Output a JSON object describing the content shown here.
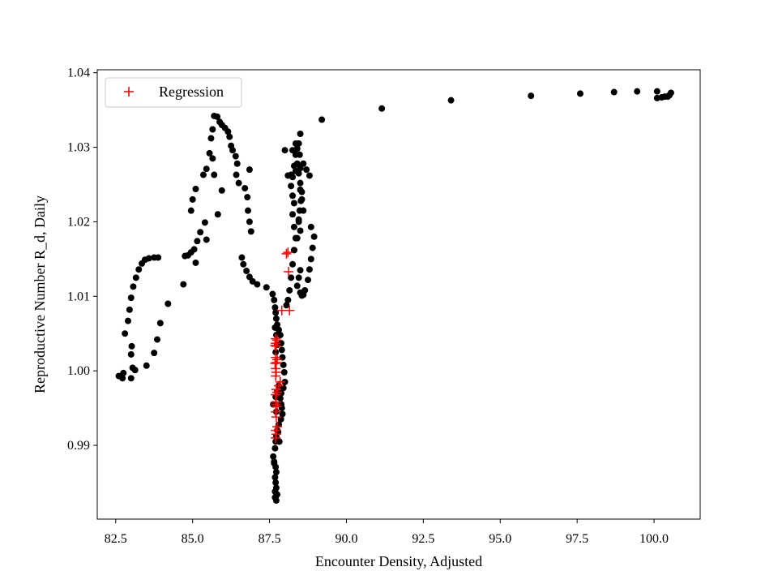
{
  "chart_data": {
    "type": "scatter",
    "xlabel": "Encounter Density, Adjusted",
    "ylabel": "Reproductive Number R_d, Daily",
    "xlim": [
      81.9,
      101.5
    ],
    "ylim": [
      0.9801,
      1.0404
    ],
    "x_ticks": [
      82.5,
      85.0,
      87.5,
      90.0,
      92.5,
      95.0,
      97.5,
      100.0
    ],
    "x_tick_labels": [
      "82.5",
      "85.0",
      "87.5",
      "90.0",
      "92.5",
      "95.0",
      "97.5",
      "100.0"
    ],
    "y_ticks": [
      0.99,
      1.0,
      1.01,
      1.02,
      1.03,
      1.04
    ],
    "y_tick_labels": [
      "0.99",
      "1.00",
      "1.01",
      "1.02",
      "1.03",
      "1.04"
    ],
    "grid": false,
    "legend_position": "top-left",
    "series": [
      {
        "marker": "dot",
        "color": "#000000",
        "points": [
          [
            82.6,
            0.9993
          ],
          [
            82.72,
            0.999
          ],
          [
            82.75,
            0.9997
          ],
          [
            82.8,
            1.005
          ],
          [
            82.9,
            1.0067
          ],
          [
            82.95,
            1.0082
          ],
          [
            83.0,
            1.0098
          ],
          [
            83.07,
            1.0113
          ],
          [
            83.16,
            1.0125
          ],
          [
            83.25,
            1.0136
          ],
          [
            83.35,
            1.0144
          ],
          [
            83.45,
            1.0149
          ],
          [
            83.58,
            1.0151
          ],
          [
            83.75,
            1.0152
          ],
          [
            83.88,
            1.0152
          ],
          [
            83.0,
            0.999
          ],
          [
            83.05,
            1.0004
          ],
          [
            83.0,
            1.0022
          ],
          [
            83.02,
            1.0033
          ],
          [
            83.13,
            1.0001
          ],
          [
            83.5,
            1.0007
          ],
          [
            83.75,
            1.0024
          ],
          [
            83.85,
            1.0042
          ],
          [
            83.95,
            1.0064
          ],
          [
            84.2,
            1.009
          ],
          [
            84.7,
            1.0116
          ],
          [
            84.75,
            1.0154
          ],
          [
            84.85,
            1.0155
          ],
          [
            84.95,
            1.0159
          ],
          [
            85.05,
            1.0163
          ],
          [
            85.15,
            1.0174
          ],
          [
            85.25,
            1.0186
          ],
          [
            85.45,
            1.0176
          ],
          [
            85.1,
            1.0145
          ],
          [
            85.4,
            1.0199
          ],
          [
            84.95,
            1.0215
          ],
          [
            85.0,
            1.023
          ],
          [
            85.1,
            1.0244
          ],
          [
            85.35,
            1.0263
          ],
          [
            85.45,
            1.0271
          ],
          [
            85.55,
            1.0292
          ],
          [
            85.6,
            1.0312
          ],
          [
            85.65,
            1.0324
          ],
          [
            85.7,
            1.0342
          ],
          [
            85.8,
            1.0341
          ],
          [
            85.88,
            1.0334
          ],
          [
            85.95,
            1.033
          ],
          [
            86.05,
            1.0326
          ],
          [
            86.15,
            1.0321
          ],
          [
            86.2,
            1.0314
          ],
          [
            86.25,
            1.0302
          ],
          [
            86.3,
            1.0296
          ],
          [
            86.4,
            1.0288
          ],
          [
            86.45,
            1.0278
          ],
          [
            86.42,
            1.0263
          ],
          [
            86.5,
            1.0252
          ],
          [
            85.65,
            1.0285
          ],
          [
            85.7,
            1.0263
          ],
          [
            85.82,
            1.021
          ],
          [
            85.95,
            1.0242
          ],
          [
            86.7,
            1.0245
          ],
          [
            86.78,
            1.0233
          ],
          [
            86.8,
            1.0215
          ],
          [
            86.85,
            1.02
          ],
          [
            86.9,
            1.0187
          ],
          [
            86.85,
            1.027
          ],
          [
            86.6,
            1.0152
          ],
          [
            86.65,
            1.0143
          ],
          [
            86.75,
            1.0134
          ],
          [
            86.85,
            1.0126
          ],
          [
            86.95,
            1.012
          ],
          [
            87.1,
            1.0116
          ],
          [
            87.4,
            1.0112
          ],
          [
            87.6,
            1.0103
          ],
          [
            87.65,
            1.0095
          ],
          [
            87.68,
            1.0085
          ],
          [
            87.7,
            1.0078
          ],
          [
            87.72,
            1.007
          ],
          [
            87.75,
            1.0062
          ],
          [
            87.8,
            1.0055
          ],
          [
            87.85,
            1.0048
          ],
          [
            87.88,
            1.0037
          ],
          [
            87.9,
            1.0028
          ],
          [
            87.92,
            1.0018
          ],
          [
            87.95,
            1.0008
          ],
          [
            87.98,
            0.9998
          ],
          [
            88.0,
            0.9985
          ],
          [
            87.95,
            0.9977
          ],
          [
            87.88,
            0.997
          ],
          [
            87.85,
            0.9963
          ],
          [
            87.88,
            0.9955
          ],
          [
            87.9,
            0.995
          ],
          [
            87.92,
            0.9942
          ],
          [
            87.87,
            0.9935
          ],
          [
            87.8,
            0.9928
          ],
          [
            87.75,
            0.992
          ],
          [
            87.72,
            0.9912
          ],
          [
            87.7,
            0.9905
          ],
          [
            87.68,
            0.9896
          ],
          [
            87.62,
            0.9885
          ],
          [
            87.65,
            0.9878
          ],
          [
            87.7,
            0.9871
          ],
          [
            87.72,
            0.9864
          ],
          [
            87.68,
            0.9857
          ],
          [
            87.7,
            0.985
          ],
          [
            87.72,
            0.9843
          ],
          [
            87.68,
            0.9838
          ],
          [
            87.7,
            0.9831
          ],
          [
            87.72,
            0.9826
          ],
          [
            87.75,
            0.9834
          ],
          [
            87.68,
            0.983
          ],
          [
            87.65,
            0.9876
          ],
          [
            87.62,
            0.9955
          ],
          [
            87.7,
            0.9965
          ],
          [
            87.75,
            0.9972
          ],
          [
            87.8,
            0.998
          ],
          [
            87.7,
            1.0025
          ],
          [
            87.75,
            1.0035
          ],
          [
            87.72,
            1.0048
          ],
          [
            87.68,
            1.0058
          ],
          [
            87.72,
            0.9945
          ],
          [
            87.78,
            0.9918
          ],
          [
            87.82,
            0.9905
          ],
          [
            88.05,
            1.0088
          ],
          [
            88.1,
            1.0095
          ],
          [
            88.15,
            1.0108
          ],
          [
            88.2,
            1.0125
          ],
          [
            88.25,
            1.0143
          ],
          [
            88.3,
            1.0162
          ],
          [
            88.35,
            1.0178
          ],
          [
            88.3,
            1.0193
          ],
          [
            88.25,
            1.021
          ],
          [
            88.3,
            1.0225
          ],
          [
            88.25,
            1.0235
          ],
          [
            88.2,
            1.0248
          ],
          [
            88.25,
            1.026
          ],
          [
            88.3,
            1.0275
          ],
          [
            88.35,
            1.029
          ],
          [
            88.4,
            1.0298
          ],
          [
            88.45,
            1.0305
          ],
          [
            88.5,
            1.0318
          ],
          [
            88.48,
            1.029
          ],
          [
            88.4,
            1.0278
          ],
          [
            88.45,
            1.0265
          ],
          [
            88.5,
            1.0252
          ],
          [
            88.55,
            1.024
          ],
          [
            88.52,
            1.0228
          ],
          [
            88.48,
            1.0215
          ],
          [
            88.45,
            1.02
          ],
          [
            88.5,
            1.0188
          ],
          [
            88.4,
            1.0178
          ],
          [
            88.3,
            1.0162
          ],
          [
            88.5,
            1.0135
          ],
          [
            88.45,
            1.0125
          ],
          [
            88.4,
            1.0114
          ],
          [
            88.5,
            1.0105
          ],
          [
            88.55,
            1.0101
          ],
          [
            88.6,
            1.0102
          ],
          [
            88.65,
            1.0108
          ],
          [
            88.75,
            1.0122
          ],
          [
            88.8,
            1.0136
          ],
          [
            88.85,
            1.015
          ],
          [
            88.9,
            1.0165
          ],
          [
            88.95,
            1.018
          ],
          [
            88.85,
            1.0193
          ],
          [
            88.1,
            1.0262
          ],
          [
            88.2,
            1.0263
          ],
          [
            88.35,
            1.0268
          ],
          [
            88.5,
            1.0272
          ],
          [
            88.6,
            1.0278
          ],
          [
            88.7,
            1.027
          ],
          [
            88.8,
            1.0262
          ],
          [
            88.5,
            1.0243
          ],
          [
            88.55,
            1.023
          ],
          [
            88.6,
            1.0215
          ],
          [
            88.45,
            1.0203
          ],
          [
            88.0,
            1.0296
          ],
          [
            88.25,
            1.0296
          ],
          [
            88.35,
            1.0305
          ],
          [
            89.2,
            1.0337
          ],
          [
            91.15,
            1.0352
          ],
          [
            93.4,
            1.0363
          ],
          [
            96.0,
            1.0369
          ],
          [
            97.6,
            1.0372
          ],
          [
            98.7,
            1.0374
          ],
          [
            99.45,
            1.0375
          ],
          [
            100.1,
            1.0375
          ],
          [
            100.1,
            1.0366
          ],
          [
            100.25,
            1.0367
          ],
          [
            100.35,
            1.0368
          ],
          [
            100.45,
            1.0368
          ],
          [
            100.5,
            1.037
          ],
          [
            100.55,
            1.0373
          ]
        ]
      },
      {
        "name": "Regression",
        "marker": "plus",
        "color": "#ff0000",
        "points": [
          [
            88.1,
            1.0159
          ],
          [
            88.05,
            1.0157
          ],
          [
            88.12,
            1.0133
          ],
          [
            88.15,
            1.0081
          ],
          [
            87.9,
            1.0081
          ],
          [
            87.7,
            1.0043
          ],
          [
            87.75,
            1.0041
          ],
          [
            87.7,
            1.0037
          ],
          [
            87.68,
            1.0034
          ],
          [
            87.72,
            1.0033
          ],
          [
            87.7,
            1.0018
          ],
          [
            87.75,
            1.0015
          ],
          [
            87.72,
            1.0011
          ],
          [
            87.68,
            1.001
          ],
          [
            87.7,
            1.0003
          ],
          [
            87.72,
            0.9998
          ],
          [
            87.7,
            0.9993
          ],
          [
            87.85,
            0.9985
          ],
          [
            87.8,
            0.998
          ],
          [
            87.72,
            0.9975
          ],
          [
            87.75,
            0.9971
          ],
          [
            87.7,
            0.9968
          ],
          [
            87.72,
            0.9958
          ],
          [
            87.7,
            0.9955
          ],
          [
            87.75,
            0.9952
          ],
          [
            87.7,
            0.9945
          ],
          [
            87.72,
            0.9938
          ],
          [
            87.75,
            0.9925
          ],
          [
            87.7,
            0.992
          ],
          [
            87.72,
            0.9915
          ],
          [
            87.7,
            0.991
          ]
        ]
      }
    ]
  }
}
